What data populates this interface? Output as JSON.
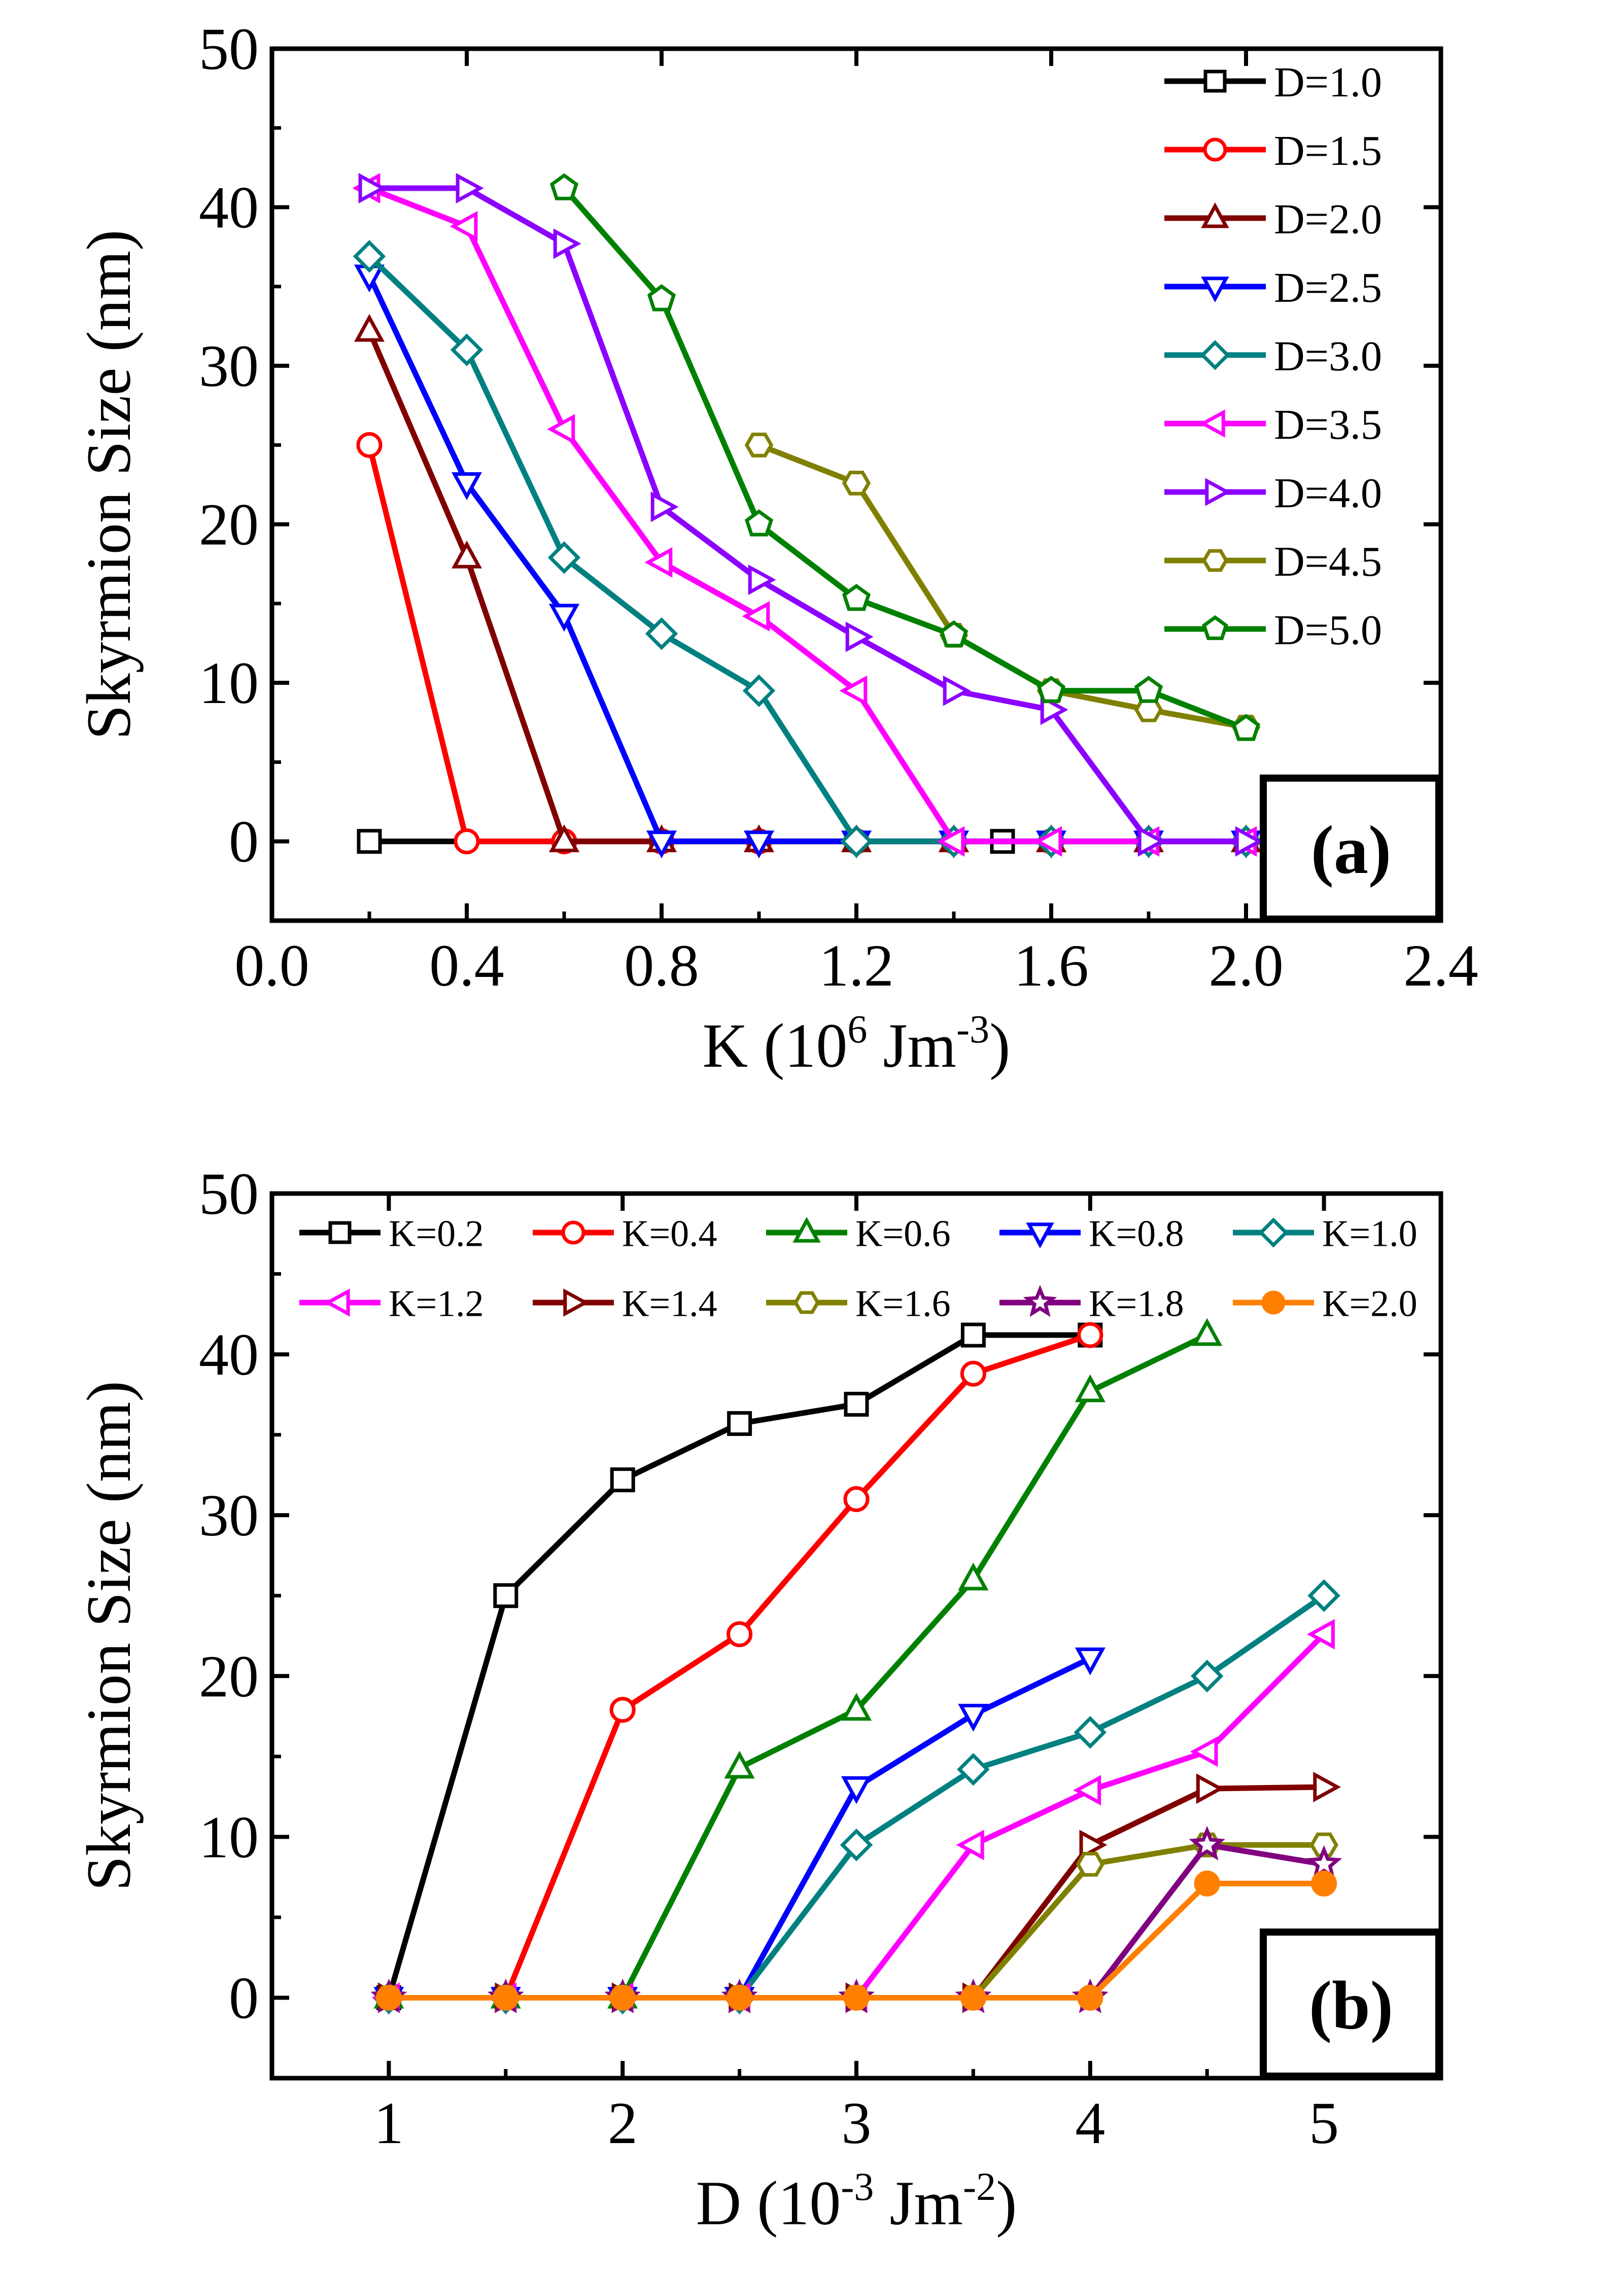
{
  "chart_data": [
    {
      "type": "line",
      "panel_label": "(a)",
      "ylabel": "Skyrmion Size (nm)",
      "xlabel": {
        "main": "K (10",
        "sup1": "6",
        "mid": " Jm",
        "sup2": "-3",
        "tail": ")"
      },
      "xlim": [
        0.0,
        2.4
      ],
      "ylim": [
        -5,
        50
      ],
      "xticks": [
        0.0,
        0.4,
        0.8,
        1.2,
        1.6,
        2.0,
        2.4
      ],
      "xtick_labels": [
        "0.0",
        "0.4",
        "0.8",
        "1.2",
        "1.6",
        "2.0",
        "2.4"
      ],
      "yticks": [
        0,
        10,
        20,
        30,
        40,
        50
      ],
      "ytick_labels": [
        "0",
        "10",
        "20",
        "30",
        "40",
        "50"
      ],
      "legend_position": "top-right",
      "series": [
        {
          "name": "D=1.0",
          "color": "#000000",
          "marker": "square",
          "x": [
            0.2,
            1.5
          ],
          "y": [
            0,
            0
          ]
        },
        {
          "name": "D=1.5",
          "color": "#ff0000",
          "marker": "circle",
          "x": [
            0.2,
            0.4,
            0.6,
            0.8,
            1.0,
            1.2,
            1.4,
            1.6,
            1.8,
            2.0
          ],
          "y": [
            25,
            0,
            0,
            0,
            0,
            0,
            0,
            0,
            0,
            0
          ]
        },
        {
          "name": "D=2.0",
          "color": "#800000",
          "marker": "triangle-up",
          "x": [
            0.2,
            0.4,
            0.6,
            0.8,
            1.0,
            1.2,
            1.4,
            1.6,
            1.8,
            2.0
          ],
          "y": [
            32.2,
            17.9,
            0,
            0,
            0,
            0,
            0,
            0,
            0,
            0
          ]
        },
        {
          "name": "D=2.5",
          "color": "#0000ff",
          "marker": "triangle-down",
          "x": [
            0.2,
            0.4,
            0.6,
            0.8,
            1.0,
            1.2,
            1.4,
            1.6,
            1.8,
            2.0
          ],
          "y": [
            35.7,
            22.6,
            14.3,
            0,
            0,
            0,
            0,
            0,
            0,
            0
          ]
        },
        {
          "name": "D=3.0",
          "color": "#008080",
          "marker": "diamond",
          "x": [
            0.2,
            0.4,
            0.6,
            0.8,
            1.0,
            1.2,
            1.4,
            1.6,
            1.8,
            2.0
          ],
          "y": [
            36.9,
            31,
            17.9,
            13.1,
            9.5,
            0,
            0,
            0,
            0,
            0
          ]
        },
        {
          "name": "D=3.5",
          "color": "#ff00ff",
          "marker": "triangle-left",
          "x": [
            0.2,
            0.4,
            0.6,
            0.8,
            1.0,
            1.2,
            1.4,
            1.6,
            1.8,
            2.0
          ],
          "y": [
            41.2,
            38.8,
            26,
            17.6,
            14.2,
            9.5,
            0,
            0,
            0,
            0
          ]
        },
        {
          "name": "D=4.0",
          "color": "#8b00ff",
          "marker": "triangle-right",
          "x": [
            0.2,
            0.4,
            0.6,
            0.8,
            1.0,
            1.2,
            1.4,
            1.6,
            1.8,
            2.0
          ],
          "y": [
            41.2,
            41.2,
            37.7,
            21.1,
            16.5,
            12.9,
            9.5,
            8.3,
            0,
            0
          ]
        },
        {
          "name": "D=4.5",
          "color": "#808000",
          "marker": "hexagon",
          "x": [
            1.0,
            1.2,
            1.4,
            1.6,
            1.8,
            2.0
          ],
          "y": [
            25,
            22.6,
            13,
            9.5,
            8.3,
            7.2
          ]
        },
        {
          "name": "D=5.0",
          "color": "#008000",
          "marker": "pentagon",
          "x": [
            0.6,
            0.8,
            1.0,
            1.2,
            1.4,
            1.6,
            1.8,
            2.0
          ],
          "y": [
            41.2,
            34.2,
            20,
            15.3,
            13,
            9.5,
            9.5,
            7.1
          ]
        }
      ]
    },
    {
      "type": "line",
      "panel_label": "(b)",
      "ylabel": "Skyrmion Size (nm)",
      "xlabel": {
        "main": "D (10",
        "sup1": "-3",
        "mid": " Jm",
        "sup2": "-2",
        "tail": ")"
      },
      "xlim": [
        0.5,
        5.5
      ],
      "ylim": [
        -5,
        50
      ],
      "xticks": [
        1,
        2,
        3,
        4,
        5
      ],
      "xtick_labels": [
        "1",
        "2",
        "3",
        "4",
        "5"
      ],
      "yticks": [
        0,
        10,
        20,
        30,
        40,
        50
      ],
      "ytick_labels": [
        "0",
        "10",
        "20",
        "30",
        "40",
        "50"
      ],
      "legend_position": "top",
      "series": [
        {
          "name": "K=0.2",
          "color": "#000000",
          "marker": "square",
          "x": [
            1,
            1.5,
            2,
            2.5,
            3,
            3.5,
            4
          ],
          "y": [
            0,
            25,
            32.2,
            35.7,
            36.9,
            41.2,
            41.2
          ]
        },
        {
          "name": "K=0.4",
          "color": "#ff0000",
          "marker": "circle",
          "x": [
            1,
            1.5,
            2,
            2.5,
            3,
            3.5,
            4
          ],
          "y": [
            0,
            0,
            17.9,
            22.6,
            31,
            38.8,
            41.2
          ]
        },
        {
          "name": "K=0.6",
          "color": "#008000",
          "marker": "triangle-up",
          "x": [
            1,
            1.5,
            2,
            2.5,
            3,
            3.5,
            4,
            4.5
          ],
          "y": [
            0,
            0,
            0,
            14.3,
            17.9,
            26,
            37.7,
            41.2
          ]
        },
        {
          "name": "K=0.8",
          "color": "#0000ff",
          "marker": "triangle-down",
          "x": [
            1,
            1.5,
            2,
            2.5,
            3,
            3.5,
            4
          ],
          "y": [
            0,
            0,
            0,
            0,
            13.1,
            17.6,
            21.1
          ]
        },
        {
          "name": "K=1.0",
          "color": "#008080",
          "marker": "diamond",
          "x": [
            1,
            1.5,
            2,
            2.5,
            3,
            3.5,
            4,
            4.5,
            5
          ],
          "y": [
            0,
            0,
            0,
            0,
            9.5,
            14.2,
            16.5,
            20,
            25
          ]
        },
        {
          "name": "K=1.2",
          "color": "#ff00ff",
          "marker": "triangle-left",
          "x": [
            1,
            1.5,
            2,
            2.5,
            3,
            3.5,
            4,
            4.5,
            5
          ],
          "y": [
            0,
            0,
            0,
            0,
            0,
            9.5,
            12.9,
            15.3,
            22.6
          ]
        },
        {
          "name": "K=1.4",
          "color": "#800000",
          "marker": "triangle-right",
          "x": [
            1,
            1.5,
            2,
            2.5,
            3,
            3.5,
            4,
            4.5,
            5
          ],
          "y": [
            0,
            0,
            0,
            0,
            0,
            0,
            9.5,
            13,
            13.1
          ]
        },
        {
          "name": "K=1.6",
          "color": "#808000",
          "marker": "hexagon",
          "x": [
            1,
            1.5,
            2,
            2.5,
            3,
            3.5,
            4,
            4.5,
            5
          ],
          "y": [
            0,
            0,
            0,
            0,
            0,
            0,
            8.3,
            9.5,
            9.5
          ]
        },
        {
          "name": "K=1.8",
          "color": "#800080",
          "marker": "star",
          "x": [
            1,
            1.5,
            2,
            2.5,
            3,
            3.5,
            4,
            4.5,
            5
          ],
          "y": [
            0,
            0,
            0,
            0,
            0,
            0,
            0,
            9.5,
            8.3
          ]
        },
        {
          "name": "K=2.0",
          "color": "#ff8000",
          "marker": "filled-circle",
          "x": [
            1,
            1.5,
            2,
            2.5,
            3,
            3.5,
            4,
            4.5,
            5
          ],
          "y": [
            0,
            0,
            0,
            0,
            0,
            0,
            0,
            7.1,
            7.1
          ]
        }
      ]
    }
  ]
}
